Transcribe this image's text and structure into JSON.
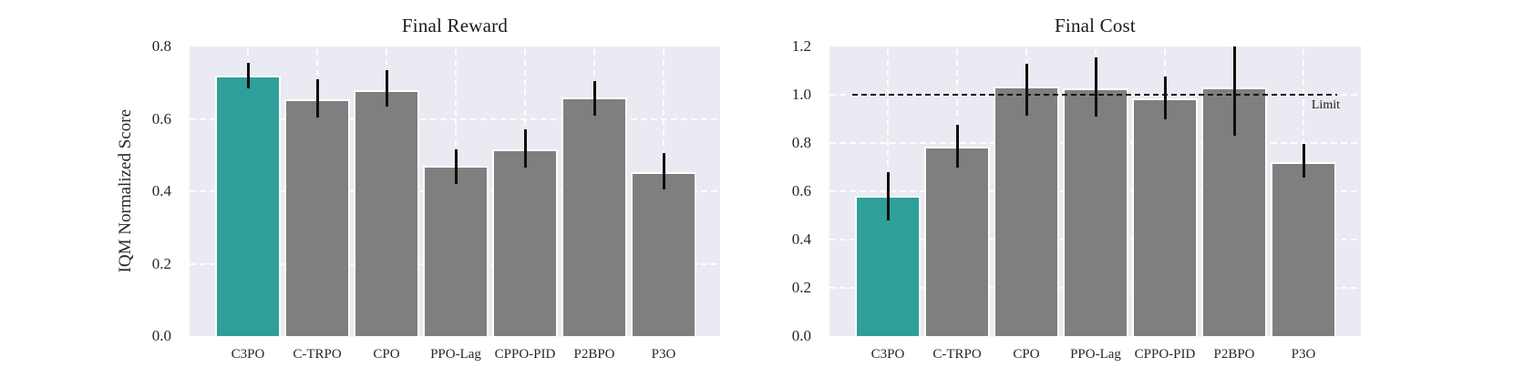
{
  "figure": {
    "background": "#ffffff",
    "plot_background": "#EAEAF2",
    "grid_color": "#ffffff",
    "highlight_color": "#2E9F99",
    "default_bar_color": "#7f7f7f",
    "error_bar_color": "#0e0e0e",
    "limit_line_color": "#141414"
  },
  "chart_data": [
    {
      "type": "bar",
      "title": "Final Reward",
      "ylabel": "IQM Normalized Score",
      "xlabel": "",
      "categories": [
        "C3PO",
        "C-TRPO",
        "CPO",
        "PPO-Lag",
        "CPPO-PID",
        "P2BPO",
        "P3O"
      ],
      "values": [
        0.72,
        0.655,
        0.68,
        0.47,
        0.515,
        0.66,
        0.452
      ],
      "error_low": [
        0.685,
        0.605,
        0.635,
        0.42,
        0.465,
        0.61,
        0.405
      ],
      "error_high": [
        0.755,
        0.71,
        0.735,
        0.515,
        0.57,
        0.705,
        0.505
      ],
      "highlight_index": 0,
      "ylim": [
        0.0,
        0.8
      ],
      "ytick_values": [
        0.0,
        0.2,
        0.4,
        0.6,
        0.8
      ],
      "ytick_labels": [
        "0.0",
        "0.2",
        "0.4",
        "0.6",
        "0.8"
      ],
      "grid": "dashed-white, horizontal and vertical at bar centers",
      "legend": "none"
    },
    {
      "type": "bar",
      "title": "Final Cost",
      "ylabel": "",
      "xlabel": "",
      "categories": [
        "C3PO",
        "C-TRPO",
        "CPO",
        "PPO-Lag",
        "CPPO-PID",
        "P2BPO",
        "P3O"
      ],
      "values": [
        0.58,
        0.785,
        1.035,
        1.025,
        0.985,
        1.03,
        0.72
      ],
      "error_low": [
        0.48,
        0.7,
        0.915,
        0.91,
        0.9,
        0.83,
        0.655
      ],
      "error_high": [
        0.68,
        0.875,
        1.13,
        1.155,
        1.075,
        1.2,
        0.795
      ],
      "highlight_index": 0,
      "ylim": [
        0.0,
        1.2
      ],
      "ytick_values": [
        0.0,
        0.2,
        0.4,
        0.6,
        0.8,
        1.0,
        1.2
      ],
      "ytick_labels": [
        "0.0",
        "0.2",
        "0.4",
        "0.6",
        "0.8",
        "1.0",
        "1.2"
      ],
      "limit_line": {
        "value": 1.0,
        "label": "Limit"
      },
      "grid": "dashed-white, horizontal and vertical at bar centers",
      "legend": "none"
    }
  ]
}
